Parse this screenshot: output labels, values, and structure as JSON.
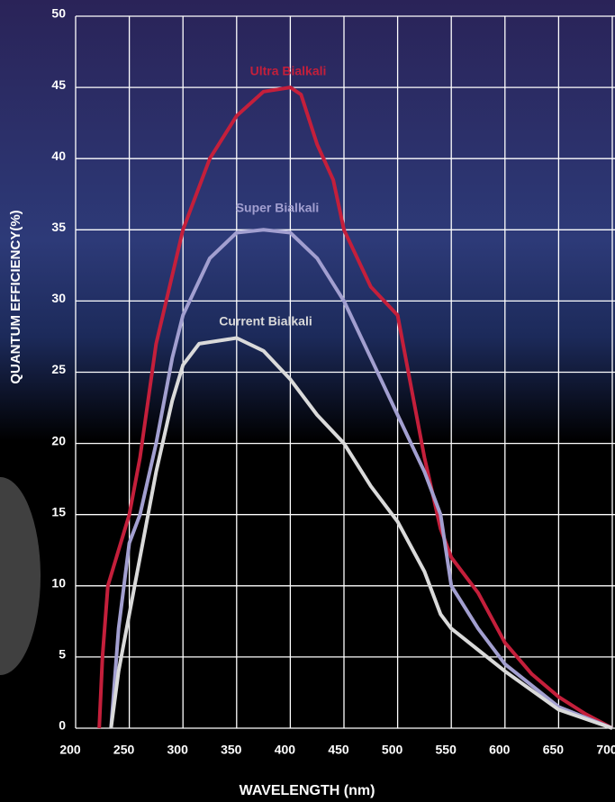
{
  "chart_data": {
    "type": "line",
    "xlabel": "WAVELENGTH (nm)",
    "ylabel": "QUANTUM EFFICIENCY(%)",
    "xlim": [
      200,
      700
    ],
    "ylim": [
      0,
      50
    ],
    "xticks": [
      200,
      250,
      300,
      350,
      400,
      450,
      500,
      550,
      600,
      650,
      700
    ],
    "yticks": [
      0,
      5,
      10,
      15,
      20,
      25,
      30,
      35,
      40,
      45,
      50
    ],
    "grid": true,
    "series": [
      {
        "name": "Ultra Bialkali",
        "color": "#c41f3b",
        "x": [
          222,
          225,
          230,
          250,
          260,
          275,
          300,
          325,
          350,
          375,
          400,
          410,
          425,
          440,
          450,
          475,
          500,
          510,
          525,
          540,
          550,
          575,
          600,
          625,
          650,
          675,
          700
        ],
        "values": [
          0,
          5,
          10,
          15,
          19,
          27,
          35,
          40,
          43,
          44.7,
          45,
          44.5,
          41,
          38.5,
          35,
          31,
          29,
          25,
          19,
          14,
          12,
          9.5,
          6,
          3.8,
          2.2,
          1,
          0
        ]
      },
      {
        "name": "Super Bialkali",
        "color": "#a29fd0",
        "x": [
          233,
          240,
          250,
          260,
          275,
          290,
          300,
          325,
          350,
          375,
          400,
          425,
          450,
          475,
          500,
          525,
          540,
          550,
          575,
          600,
          650,
          700
        ],
        "values": [
          0,
          7,
          13,
          15,
          20,
          26,
          29,
          33,
          34.8,
          35,
          34.8,
          33,
          30,
          26,
          22,
          18,
          15,
          10,
          7,
          4.5,
          1.5,
          0
        ]
      },
      {
        "name": "Current Bialkali",
        "color": "#dadada",
        "x": [
          233,
          240,
          250,
          260,
          275,
          290,
          300,
          315,
          350,
          375,
          400,
          425,
          450,
          475,
          500,
          525,
          540,
          550,
          575,
          600,
          650,
          700
        ],
        "values": [
          0,
          4,
          8,
          12,
          18,
          23,
          25.5,
          27,
          27.4,
          26.5,
          24.5,
          22,
          20,
          17,
          14.5,
          11,
          8,
          7,
          5.5,
          4,
          1.3,
          0
        ]
      }
    ]
  }
}
